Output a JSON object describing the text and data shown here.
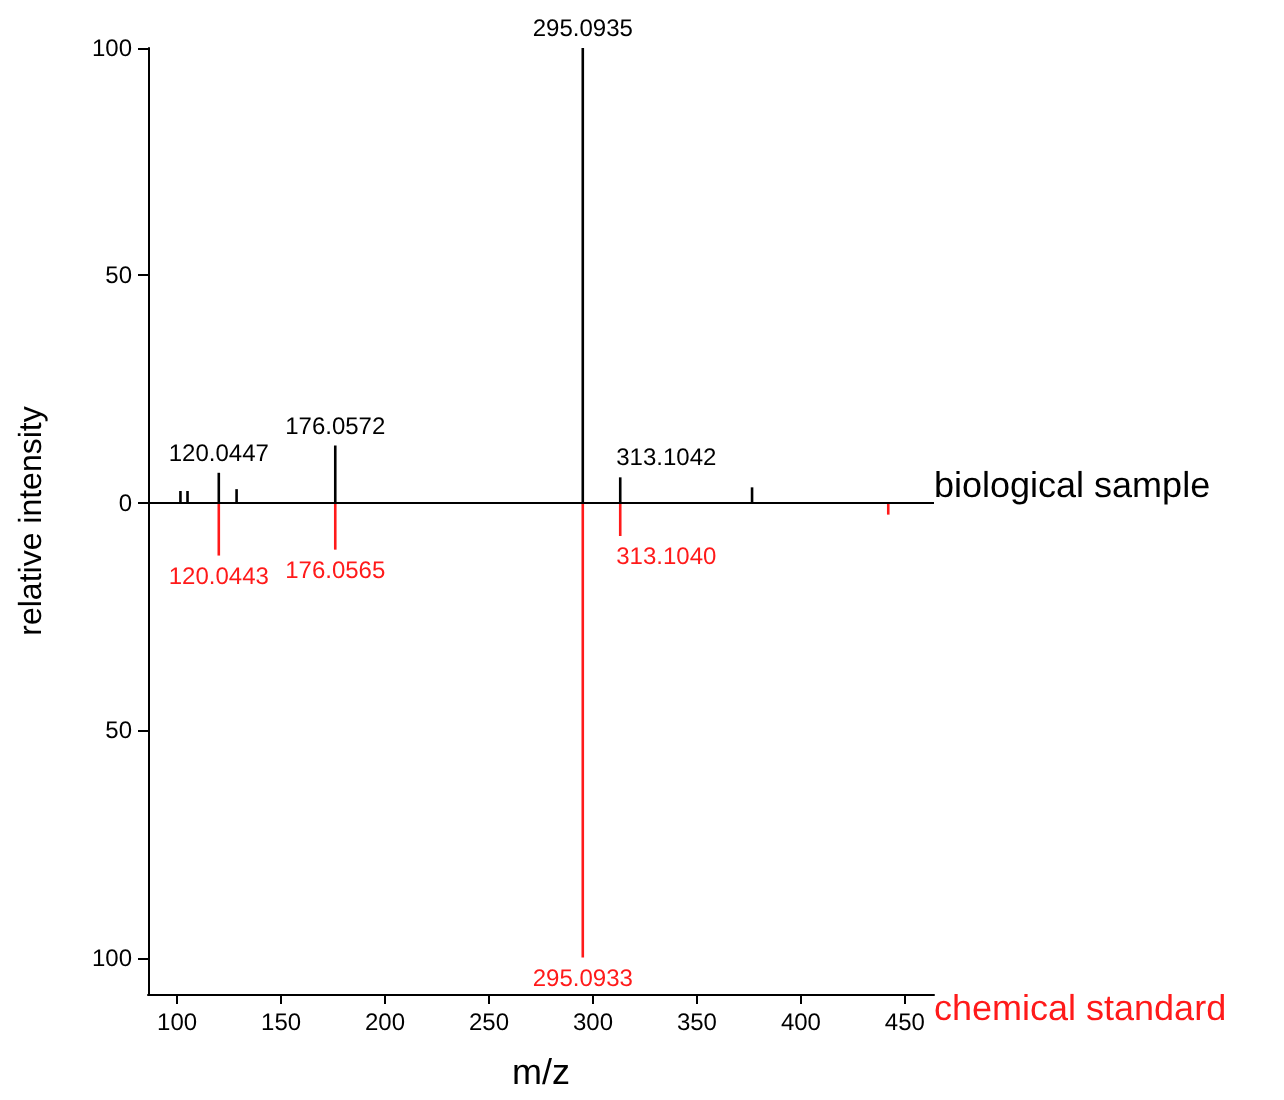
{
  "chart_data": {
    "type": "bar",
    "xlabel": "m/z",
    "ylabel": "relative intensity",
    "xlim": [
      86,
      464
    ],
    "xticks": [
      100,
      150,
      200,
      250,
      300,
      350,
      400,
      450
    ],
    "ylim": [
      -108,
      100
    ],
    "yticks": [
      {
        "value": -100,
        "label": "100"
      },
      {
        "value": -50,
        "label": "50"
      },
      0,
      50,
      100
    ],
    "grid": false,
    "legend": false,
    "ref_lines": [
      {
        "axis": "y",
        "value": 0,
        "color": "#000000"
      }
    ],
    "series": [
      {
        "name": "biological sample",
        "color": "#000000",
        "x": [
          101.6,
          105,
          120.0447,
          128.6,
          176.0572,
          295.0935,
          313.1042,
          376.5
        ],
        "values": [
          2.6,
          2.6,
          6.6,
          3,
          12.6,
          100,
          5.6,
          3.4
        ]
      },
      {
        "name": "chemical standard",
        "color": "#ff1a1a",
        "x": [
          120.0443,
          176.0565,
          295.0933,
          313.104,
          442
        ],
        "values": [
          -11.6,
          -10.3,
          -100,
          -7.3,
          -2.6
        ]
      }
    ],
    "annotations": [
      {
        "text": "120.0447",
        "x": 120.0447,
        "y": 6.6
      },
      {
        "text": "176.0572",
        "x": 176.0572,
        "y": 12.6
      },
      {
        "text": "295.0935",
        "x": 295.0935,
        "y": 100
      },
      {
        "text": "313.1042",
        "x": 313.1042,
        "y": 5.6
      },
      {
        "text": "120.0443",
        "x": 120.0443,
        "y": -11.6
      },
      {
        "text": "176.0565",
        "x": 176.0565,
        "y": -10.3
      },
      {
        "text": "295.0933",
        "x": 295.0933,
        "y": -100
      },
      {
        "text": "313.1040",
        "x": 313.104,
        "y": -7.3
      }
    ]
  }
}
